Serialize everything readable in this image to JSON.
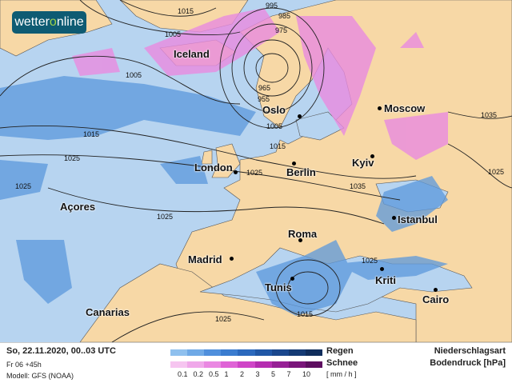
{
  "logo": {
    "text_a": "wetter",
    "text_b": "o",
    "text_c": "nline"
  },
  "colors": {
    "ocean": "#b7d4f0",
    "land": "#f7d8a6",
    "rain": "#5b98dc",
    "snow": "#e98be0",
    "logo_bg": "#0e5b73"
  },
  "cities": [
    {
      "name": "Iceland",
      "dot": false
    },
    {
      "name": "Oslo",
      "dot": true
    },
    {
      "name": "Moscow",
      "dot": true
    },
    {
      "name": "London",
      "dot": true
    },
    {
      "name": "Berlin",
      "dot": true
    },
    {
      "name": "Kyiv",
      "dot": true
    },
    {
      "name": "Açores",
      "dot": false
    },
    {
      "name": "Istanbul",
      "dot": true
    },
    {
      "name": "Madrid",
      "dot": true
    },
    {
      "name": "Roma",
      "dot": true
    },
    {
      "name": "Tunis",
      "dot": true
    },
    {
      "name": "Kriti",
      "dot": true
    },
    {
      "name": "Cairo",
      "dot": true
    },
    {
      "name": "Canarias",
      "dot": false
    }
  ],
  "isobar_labels": [
    "1015",
    "1005",
    "995",
    "985",
    "975",
    "965",
    "955",
    "1005",
    "1015",
    "1025",
    "1005",
    "1015",
    "1025",
    "1035",
    "1025",
    "1025",
    "1025",
    "1015",
    "1025",
    "1035",
    "1025"
  ],
  "footer": {
    "date": "So, 22.11.2020, 00..03 UTC",
    "run": "Fr 06 +45h",
    "model": "Modell: GFS (NOAA)",
    "rain_label": "Regen",
    "snow_label": "Schnee",
    "ticks": [
      "0.1",
      "0.2",
      "0.5",
      "1",
      "2",
      "3",
      "5",
      "7",
      "10"
    ],
    "unit": "[ mm / h ]",
    "title1": "Niederschlagsart",
    "title2": "Bodendruck [hPa]",
    "rain_colors": [
      "#8fc0ee",
      "#6fa9e6",
      "#4f8fdc",
      "#3a7ccf",
      "#2b69bd",
      "#2057a6",
      "#1a478d",
      "#143a74",
      "#0f2d5c"
    ],
    "snow_colors": [
      "#f6c5f0",
      "#f0a8ea",
      "#ea88e2",
      "#df63d6",
      "#cf45c7",
      "#b52db0",
      "#972095",
      "#7a157a",
      "#5e0e60"
    ]
  }
}
